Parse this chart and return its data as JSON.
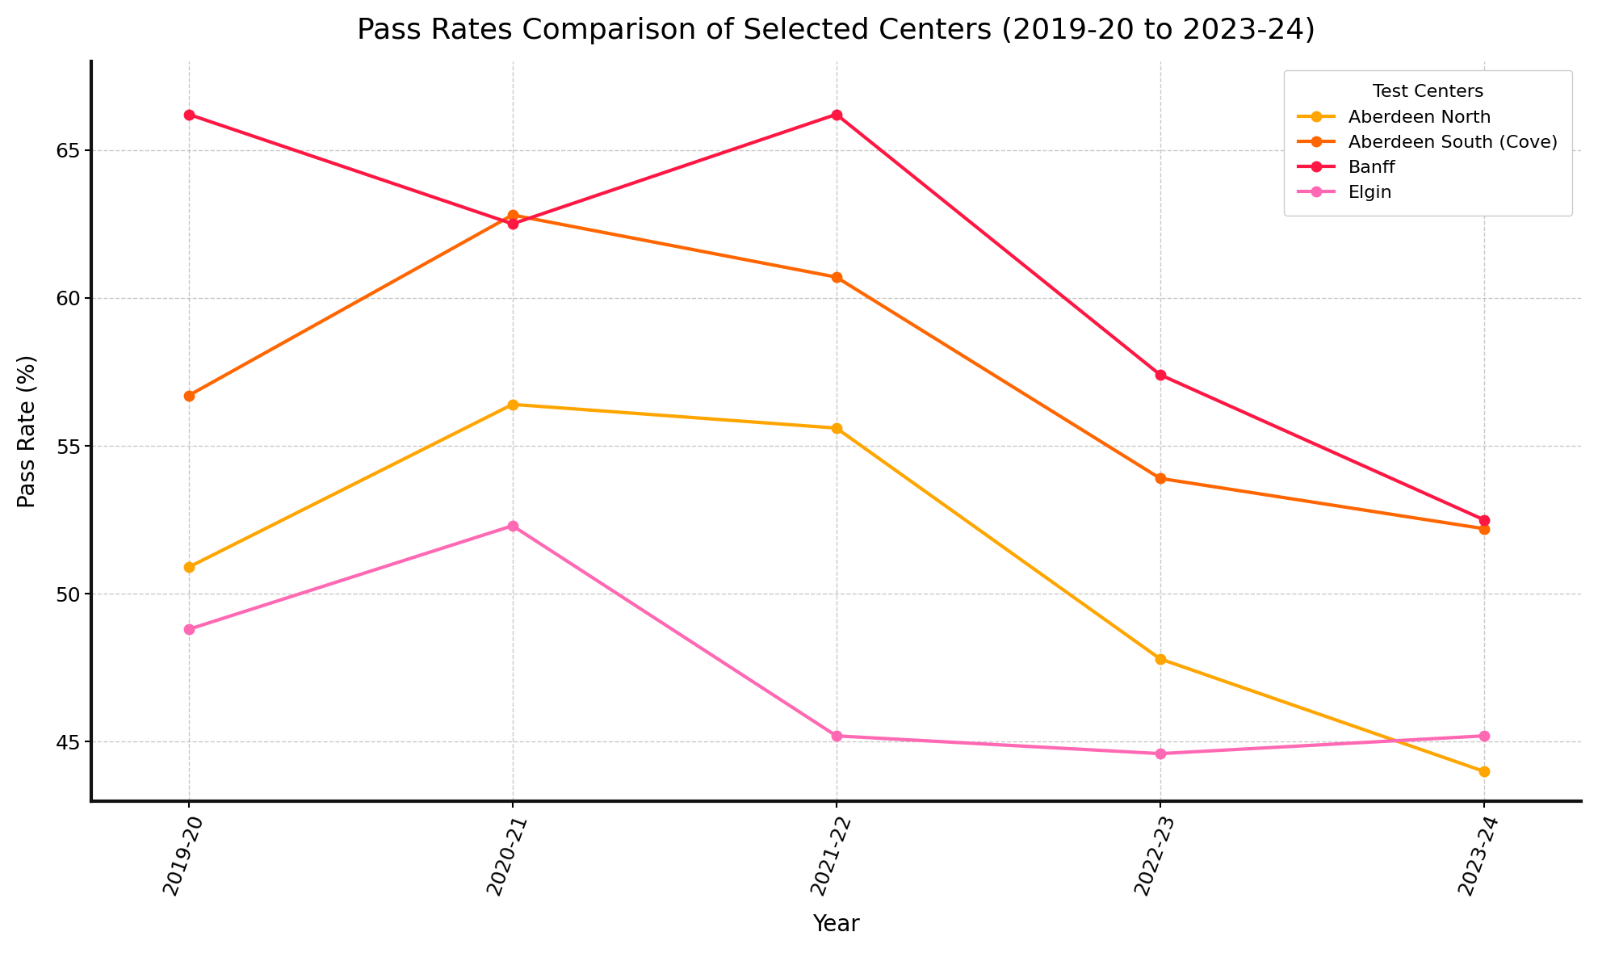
{
  "title": "Pass Rates Comparison of Selected Centers (2019-20 to 2023-24)",
  "xlabel": "Year",
  "ylabel": "Pass Rate (%)",
  "legend_title": "Test Centers",
  "years": [
    "2019-20",
    "2020-21",
    "2021-22",
    "2022-23",
    "2023-24"
  ],
  "series": {
    "Aberdeen North": {
      "values": [
        50.9,
        56.4,
        55.6,
        47.8,
        44.0
      ],
      "color": "#FFA500",
      "linewidth": 3.0,
      "markersize": 9
    },
    "Aberdeen South (Cove)": {
      "values": [
        56.7,
        62.8,
        60.7,
        53.9,
        52.2
      ],
      "color": "#FF6600",
      "linewidth": 3.0,
      "markersize": 9
    },
    "Banff": {
      "values": [
        66.2,
        62.5,
        66.2,
        57.4,
        52.5
      ],
      "color": "#FF1744",
      "linewidth": 3.0,
      "markersize": 9
    },
    "Elgin": {
      "values": [
        48.8,
        52.3,
        45.2,
        44.6,
        45.2
      ],
      "color": "#FF69B4",
      "linewidth": 3.0,
      "markersize": 9
    }
  },
  "ylim": [
    43,
    68
  ],
  "yticks": [
    45,
    50,
    55,
    60,
    65
  ],
  "background_color": "#FFFFFF",
  "grid_color": "#BBBBBB",
  "title_fontsize": 26,
  "label_fontsize": 20,
  "tick_fontsize": 18,
  "legend_fontsize": 16,
  "spine_linewidth": 3.0,
  "xtick_rotation": 70
}
